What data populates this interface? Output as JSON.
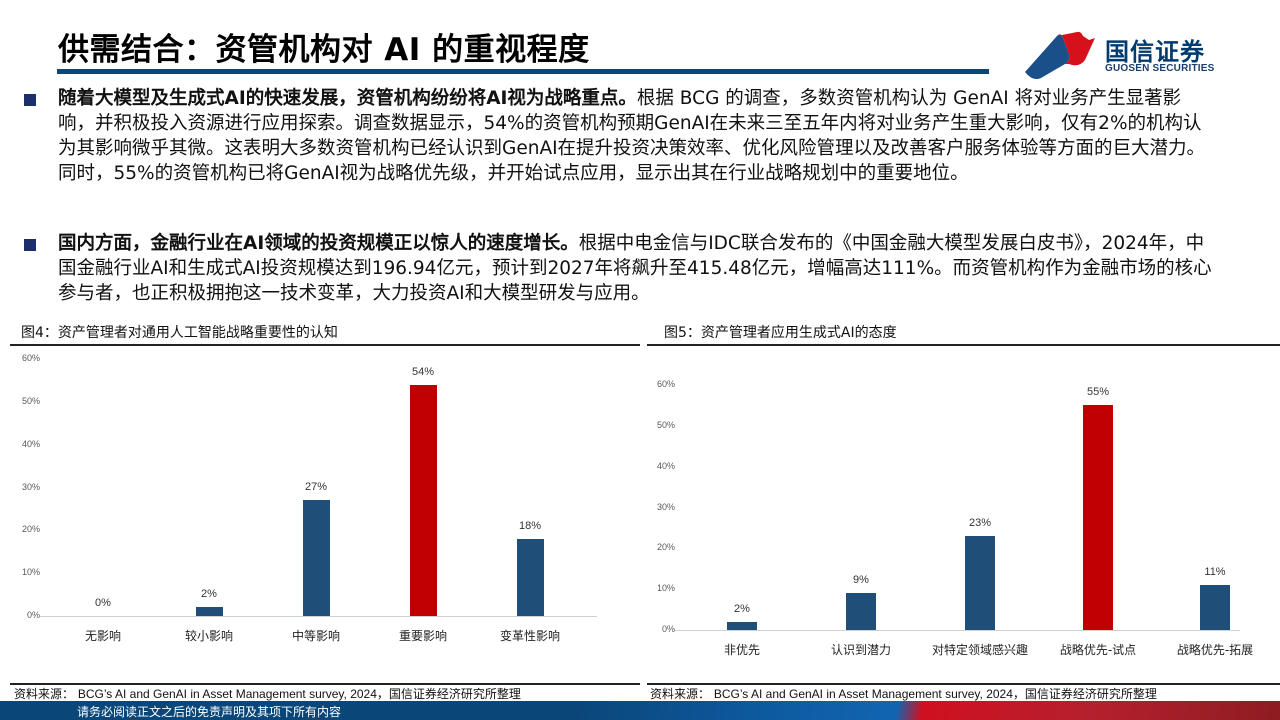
{
  "header": {
    "title": "供需结合：资管机构对  AI 的重视程度",
    "logo": {
      "icon": "guosen-logo-icon",
      "name_cn": "国信证券",
      "name_en": "GUOSEN SECURITIES"
    }
  },
  "paragraphs": [
    {
      "bold": "随着大模型及生成式AI的快速发展，资管机构纷纷将AI视为战略重点。",
      "text": "根据 BCG 的调查，多数资管机构认为 GenAI 将对业务产生显著影响，并积极投入资源进行应用探索。调查数据显示，54%的资管机构预期GenAI在未来三至五年内将对业务产生重大影响，仅有2%的机构认为其影响微乎其微。这表明大多数资管机构已经认识到GenAI在提升投资决策效率、优化风险管理以及改善客户服务体验等方面的巨大潜力。同时，55%的资管机构已将GenAI视为战略优先级，并开始试点应用，显示出其在行业战略规划中的重要地位。"
    },
    {
      "bold": "国内方面，金融行业在AI领域的投资规模正以惊人的速度增长。",
      "text": "根据中电金信与IDC联合发布的《中国金融大模型发展白皮书》，2024年，中国金融行业AI和生成式AI投资规模达到196.94亿元，预计到2027年将飙升至415.48亿元，增幅高达111%。而资管机构作为金融市场的核心参与者，也正积极拥抱这一技术变革，大力投资AI和大模型研发与应用。"
    }
  ],
  "figures": [
    {
      "title": "图4：资产管理者对通用人工智能战略重要性的认知",
      "source_label": "资料来源：",
      "source_text": "BCG’s AI and GenAI in Asset Management survey, 2024，国信证券经济研究所整理"
    },
    {
      "title": "图5：资产管理者应用生成式AI的态度",
      "source_label": "资料来源：",
      "source_text": "BCG’s AI and GenAI in Asset Management survey, 2024，国信证券经济研究所整理"
    }
  ],
  "chart_data": [
    {
      "type": "bar",
      "title": "图4：资产管理者对通用人工智能战略重要性的认知",
      "categories": [
        "无影响",
        "较小影响",
        "中等影响",
        "重要影响",
        "变革性影响"
      ],
      "values": [
        0,
        2,
        27,
        54,
        18
      ],
      "value_labels": [
        "0%",
        "2%",
        "27%",
        "54%",
        "18%"
      ],
      "colors": [
        "#1f4e79",
        "#1f4e79",
        "#1f4e79",
        "#c00000",
        "#1f4e79"
      ],
      "yticks": [
        "0%",
        "10%",
        "20%",
        "30%",
        "40%",
        "50%",
        "60%"
      ],
      "ylim": [
        0,
        60
      ],
      "xlabel": "",
      "ylabel": "",
      "grid": false,
      "legend": "none"
    },
    {
      "type": "bar",
      "title": "图5：资产管理者应用生成式AI的态度",
      "categories": [
        "非优先",
        "认识到潜力",
        "对特定领域感兴趣",
        "战略优先-试点",
        "战略优先-拓展"
      ],
      "values": [
        2,
        9,
        23,
        55,
        11
      ],
      "value_labels": [
        "2%",
        "9%",
        "23%",
        "55%",
        "11%"
      ],
      "colors": [
        "#1f4e79",
        "#1f4e79",
        "#1f4e79",
        "#c00000",
        "#1f4e79"
      ],
      "yticks": [
        "0%",
        "10%",
        "20%",
        "30%",
        "40%",
        "50%",
        "60%"
      ],
      "ylim": [
        0,
        60
      ],
      "xlabel": "",
      "ylabel": "",
      "grid": false,
      "legend": "none"
    }
  ],
  "footer": {
    "disclaimer": "请务必阅读正文之后的免责声明及其项下所有内容"
  }
}
